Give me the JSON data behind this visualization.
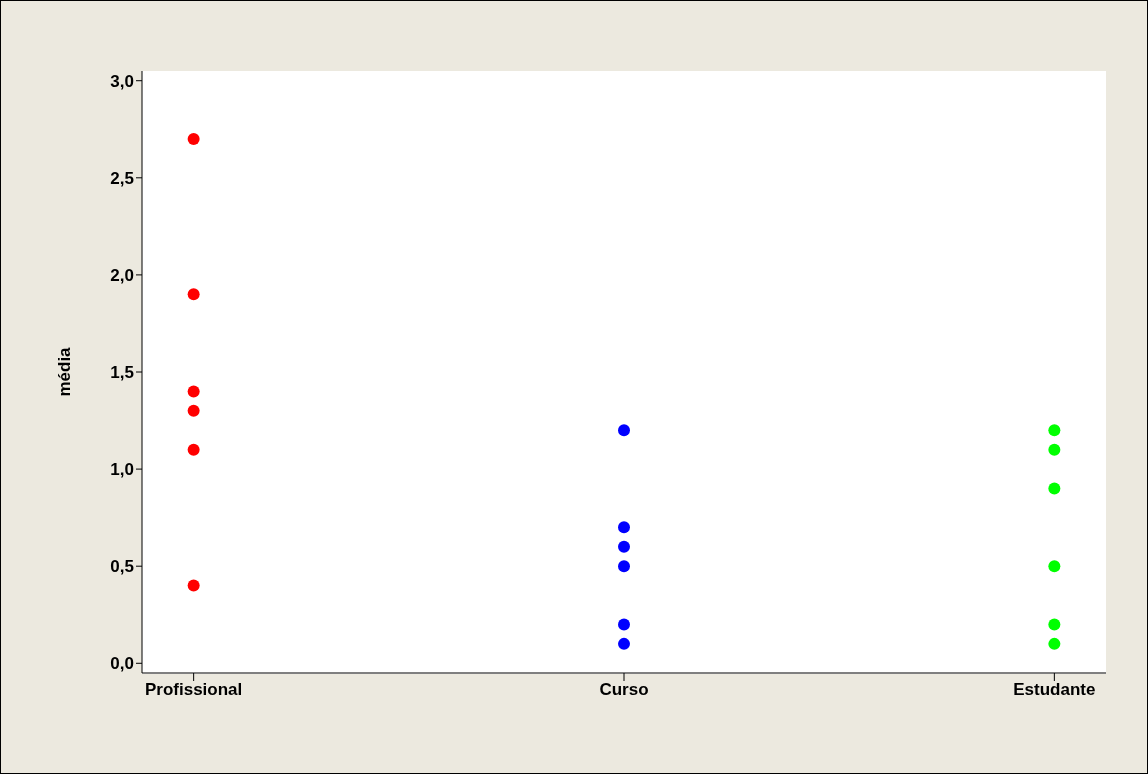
{
  "chart_data": {
    "type": "scatter",
    "ylabel": "média",
    "categories": [
      "Profissional",
      "Curso",
      "Estudante"
    ],
    "ylim": [
      -0.05,
      3.05
    ],
    "yticks": [
      {
        "value": 0,
        "label": "0,0"
      },
      {
        "value": 0.5,
        "label": "0,5"
      },
      {
        "value": 1,
        "label": "1,0"
      },
      {
        "value": 1.5,
        "label": "1,5"
      },
      {
        "value": 2,
        "label": "2,0"
      },
      {
        "value": 2.5,
        "label": "2,5"
      },
      {
        "value": 3,
        "label": "3,0"
      }
    ],
    "grid": false,
    "legend": false,
    "marker": "circle",
    "series": [
      {
        "color": "#ff0000",
        "x": [
          "Profissional",
          "Profissional",
          "Profissional",
          "Profissional",
          "Profissional",
          "Profissional"
        ],
        "values": [
          2.7,
          1.9,
          1.4,
          1.3,
          1.1,
          0.4
        ]
      },
      {
        "color": "#0000ff",
        "x": [
          "Curso",
          "Curso",
          "Curso",
          "Curso",
          "Curso",
          "Curso"
        ],
        "values": [
          1.2,
          0.7,
          0.6,
          0.5,
          0.2,
          0.1
        ]
      },
      {
        "color": "#00ff00",
        "x": [
          "Estudante",
          "Estudante",
          "Estudante",
          "Estudante",
          "Estudante",
          "Estudante"
        ],
        "values": [
          1.2,
          1.1,
          0.9,
          0.5,
          0.2,
          0.1
        ]
      }
    ]
  }
}
